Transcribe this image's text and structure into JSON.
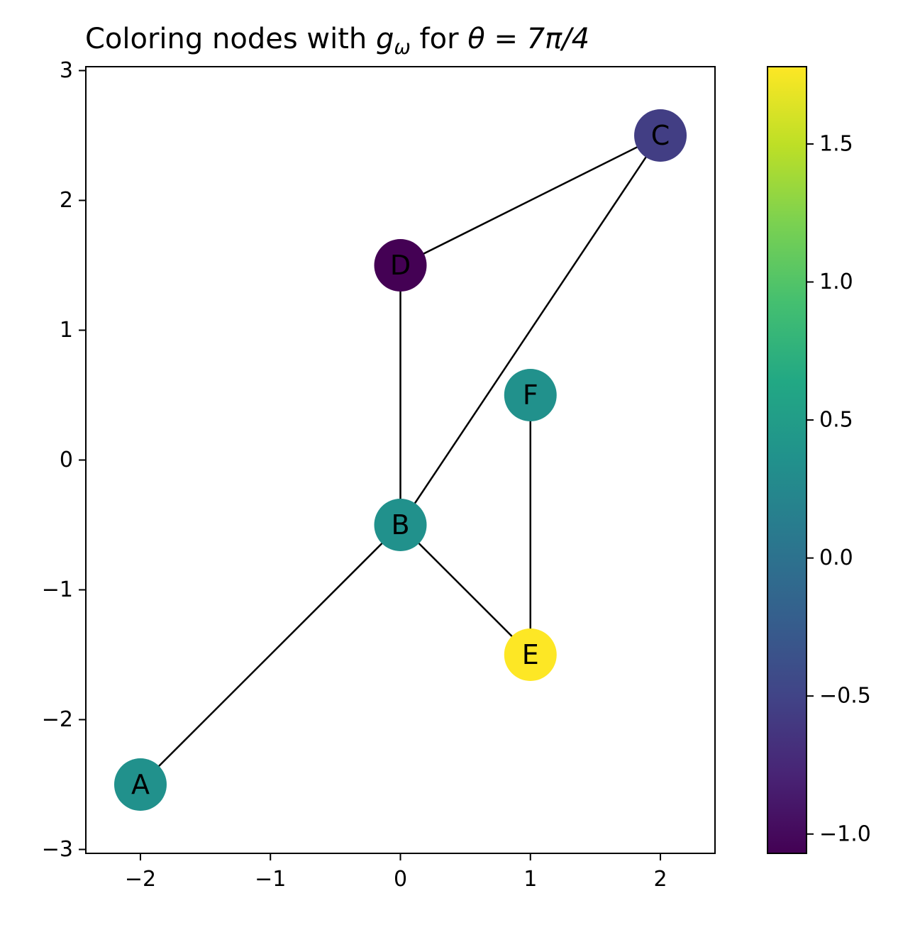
{
  "chart_data": {
    "type": "scatter",
    "title_text": "Coloring nodes with ",
    "title_math_g": "g",
    "title_math_sub": "ω",
    "title_mid": " for  ",
    "title_math_theta": "θ = 7π/4",
    "xlim": [
      -2.42,
      2.42
    ],
    "ylim": [
      -3.03,
      3.03
    ],
    "xticks": [
      {
        "value": -2,
        "label": "−2"
      },
      {
        "value": -1,
        "label": "−1"
      },
      {
        "value": 0,
        "label": "0"
      },
      {
        "value": 1,
        "label": "1"
      },
      {
        "value": 2,
        "label": "2"
      }
    ],
    "yticks": [
      {
        "value": -3,
        "label": "−3"
      },
      {
        "value": -2,
        "label": "−2"
      },
      {
        "value": -1,
        "label": "−1"
      },
      {
        "value": 0,
        "label": "0"
      },
      {
        "value": 1,
        "label": "1"
      },
      {
        "value": 2,
        "label": "2"
      },
      {
        "value": 3,
        "label": "3"
      }
    ],
    "grid": false,
    "nodes": [
      {
        "id": "A",
        "x": -2,
        "y": -2.5,
        "value": 0.35
      },
      {
        "id": "B",
        "x": 0,
        "y": -0.5,
        "value": 0.35
      },
      {
        "id": "C",
        "x": 2,
        "y": 2.5,
        "value": -0.55
      },
      {
        "id": "D",
        "x": 0,
        "y": 1.5,
        "value": -1.07
      },
      {
        "id": "E",
        "x": 1,
        "y": -1.5,
        "value": 1.78
      },
      {
        "id": "F",
        "x": 1,
        "y": 0.5,
        "value": 0.35
      }
    ],
    "edges": [
      [
        "A",
        "B"
      ],
      [
        "B",
        "D"
      ],
      [
        "B",
        "C"
      ],
      [
        "B",
        "E"
      ],
      [
        "D",
        "C"
      ],
      [
        "F",
        "E"
      ]
    ],
    "colorbar": {
      "colormap": "viridis",
      "vmin": -1.07,
      "vmax": 1.78,
      "ticks": [
        {
          "value": -1.0,
          "label": "−1.0"
        },
        {
          "value": -0.5,
          "label": "−0.5"
        },
        {
          "value": 0.0,
          "label": "0.0"
        },
        {
          "value": 0.5,
          "label": "0.5"
        },
        {
          "value": 1.0,
          "label": "1.0"
        },
        {
          "value": 1.5,
          "label": "1.5"
        }
      ]
    },
    "colors": {
      "edge": "#000000",
      "axis": "#000000",
      "background": "#ffffff"
    }
  }
}
